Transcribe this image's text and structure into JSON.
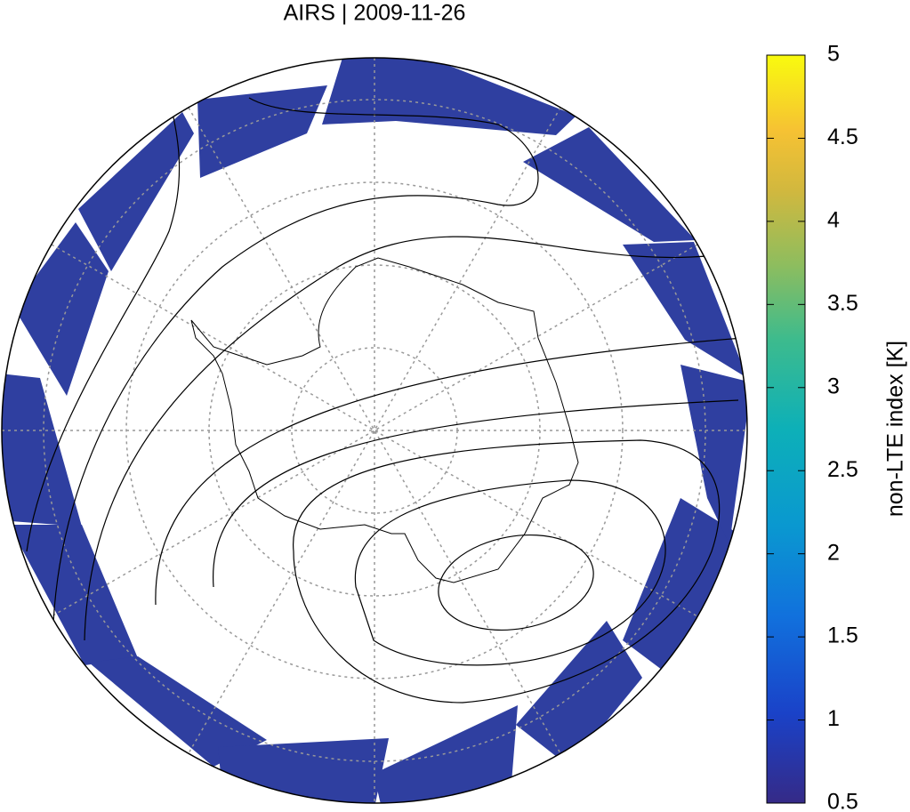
{
  "title": "AIRS | 2009-11-26",
  "colorbar": {
    "label": "non-LTE index [K]",
    "lim": [
      0.5,
      5
    ],
    "ticks": [
      0.5,
      1,
      1.5,
      2,
      2.5,
      3,
      3.5,
      4,
      4.5,
      5
    ]
  }
}
